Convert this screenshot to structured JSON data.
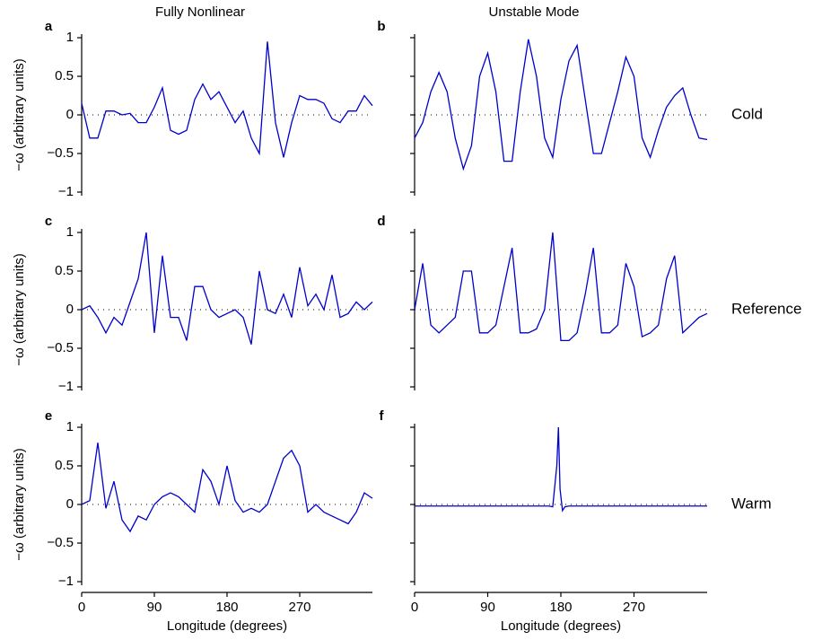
{
  "chart_data": [
    {
      "type": "line",
      "panel": "a",
      "title": "Fully Nonlinear",
      "ylabel": "−ω (arbitrary units)",
      "x": [
        0,
        10,
        20,
        30,
        40,
        50,
        60,
        70,
        80,
        90,
        100,
        110,
        120,
        130,
        140,
        150,
        160,
        170,
        180,
        190,
        200,
        210,
        220,
        230,
        240,
        250,
        260,
        270,
        280,
        290,
        300,
        310,
        320,
        330,
        340,
        350,
        360
      ],
      "values": [
        0.15,
        -0.3,
        -0.3,
        0.05,
        0.05,
        0.0,
        0.02,
        -0.1,
        -0.1,
        0.1,
        0.35,
        -0.2,
        -0.25,
        -0.2,
        0.2,
        0.4,
        0.2,
        0.3,
        0.1,
        -0.1,
        0.05,
        -0.3,
        -0.5,
        0.95,
        -0.1,
        -0.55,
        -0.1,
        0.25,
        0.2,
        0.2,
        0.15,
        -0.05,
        -0.1,
        0.05,
        0.05,
        0.25,
        0.12
      ],
      "color": "#0000cc",
      "xlim": [
        0,
        360
      ],
      "ylim": [
        -1,
        1
      ],
      "zero_line": true,
      "ytick_labels": true,
      "yticks": [
        {
          "value": -1,
          "label": "−1"
        },
        {
          "value": -0.5,
          "label": "−0.5"
        },
        0,
        0.5,
        1
      ]
    },
    {
      "type": "line",
      "panel": "b",
      "title": "Unstable Mode",
      "row_label": "Cold",
      "x": [
        0,
        10,
        20,
        30,
        40,
        50,
        60,
        70,
        80,
        90,
        100,
        110,
        120,
        130,
        140,
        150,
        160,
        170,
        180,
        190,
        200,
        210,
        220,
        230,
        240,
        250,
        260,
        270,
        280,
        290,
        300,
        310,
        320,
        330,
        340,
        350,
        360
      ],
      "values": [
        -0.3,
        -0.1,
        0.3,
        0.55,
        0.3,
        -0.3,
        -0.7,
        -0.4,
        0.5,
        0.8,
        0.3,
        -0.6,
        -0.6,
        0.3,
        0.98,
        0.5,
        -0.3,
        -0.55,
        0.2,
        0.7,
        0.9,
        0.2,
        -0.5,
        -0.5,
        -0.1,
        0.3,
        0.75,
        0.5,
        -0.3,
        -0.55,
        -0.2,
        0.1,
        0.25,
        0.35,
        0.0,
        -0.3,
        -0.32
      ],
      "color": "#0000cc",
      "xlim": [
        0,
        360
      ],
      "ylim": [
        -1,
        1
      ],
      "zero_line": true,
      "ytick_labels": false,
      "yticks": [
        -1,
        -0.5,
        0,
        0.5,
        1
      ]
    },
    {
      "type": "line",
      "panel": "c",
      "ylabel": "−ω (arbitrary units)",
      "x": [
        0,
        10,
        20,
        30,
        40,
        50,
        60,
        70,
        80,
        90,
        100,
        110,
        120,
        130,
        140,
        150,
        160,
        170,
        180,
        190,
        200,
        210,
        220,
        230,
        240,
        250,
        260,
        270,
        280,
        290,
        300,
        310,
        320,
        330,
        340,
        350,
        360
      ],
      "values": [
        0.0,
        0.05,
        -0.1,
        -0.3,
        -0.1,
        -0.2,
        0.1,
        0.4,
        1.0,
        -0.3,
        0.7,
        -0.1,
        -0.1,
        -0.4,
        0.3,
        0.3,
        0.0,
        -0.1,
        -0.05,
        0.0,
        -0.1,
        -0.45,
        0.5,
        0.0,
        -0.05,
        0.2,
        -0.1,
        0.55,
        0.05,
        0.2,
        0.0,
        0.45,
        -0.1,
        -0.05,
        0.1,
        0.0,
        0.1
      ],
      "color": "#0000cc",
      "xlim": [
        0,
        360
      ],
      "ylim": [
        -1,
        1
      ],
      "zero_line": true,
      "ytick_labels": true,
      "yticks": [
        {
          "value": -1,
          "label": "−1"
        },
        {
          "value": -0.5,
          "label": "−0.5"
        },
        0,
        0.5,
        1
      ]
    },
    {
      "type": "line",
      "panel": "d",
      "row_label": "Reference",
      "x": [
        0,
        10,
        20,
        30,
        40,
        50,
        60,
        70,
        80,
        90,
        100,
        110,
        120,
        130,
        140,
        150,
        160,
        170,
        180,
        190,
        200,
        210,
        220,
        230,
        240,
        250,
        260,
        270,
        280,
        290,
        300,
        310,
        320,
        330,
        340,
        350,
        360
      ],
      "values": [
        0.0,
        0.6,
        -0.2,
        -0.3,
        -0.2,
        -0.1,
        0.5,
        0.5,
        -0.3,
        -0.3,
        -0.2,
        0.3,
        0.8,
        -0.3,
        -0.3,
        -0.25,
        0.0,
        1.0,
        -0.4,
        -0.4,
        -0.3,
        0.2,
        0.8,
        -0.3,
        -0.3,
        -0.2,
        0.6,
        0.3,
        -0.35,
        -0.3,
        -0.2,
        0.4,
        0.7,
        -0.3,
        -0.2,
        -0.1,
        -0.05
      ],
      "color": "#0000cc",
      "xlim": [
        0,
        360
      ],
      "ylim": [
        -1,
        1
      ],
      "zero_line": true,
      "ytick_labels": false,
      "yticks": [
        -1,
        -0.5,
        0,
        0.5,
        1
      ]
    },
    {
      "type": "line",
      "panel": "e",
      "ylabel": "−ω (arbitrary units)",
      "xlabel": "Longitude (degrees)",
      "x": [
        0,
        10,
        20,
        30,
        40,
        50,
        60,
        70,
        80,
        90,
        100,
        110,
        120,
        130,
        140,
        150,
        160,
        170,
        180,
        190,
        200,
        210,
        220,
        230,
        240,
        250,
        260,
        270,
        280,
        290,
        300,
        310,
        320,
        330,
        340,
        350,
        360
      ],
      "values": [
        0.0,
        0.05,
        0.8,
        -0.05,
        0.3,
        -0.2,
        -0.35,
        -0.15,
        -0.2,
        0.0,
        0.1,
        0.15,
        0.1,
        0.0,
        -0.1,
        0.45,
        0.3,
        0.0,
        0.5,
        0.05,
        -0.1,
        -0.05,
        -0.1,
        0.0,
        0.3,
        0.6,
        0.7,
        0.5,
        -0.1,
        0.0,
        -0.1,
        -0.15,
        -0.2,
        -0.25,
        -0.1,
        0.15,
        0.08
      ],
      "color": "#0000cc",
      "xlim": [
        0,
        360
      ],
      "ylim": [
        -1,
        1
      ],
      "zero_line": true,
      "ytick_labels": true,
      "yticks": [
        {
          "value": -1,
          "label": "−1"
        },
        {
          "value": -0.5,
          "label": "−0.5"
        },
        0,
        0.5,
        1
      ],
      "xticks": [
        0,
        90,
        180,
        270
      ]
    },
    {
      "type": "line",
      "panel": "f",
      "row_label": "Warm",
      "xlabel": "Longitude (degrees)",
      "x": [
        0,
        165,
        170,
        175,
        177,
        179,
        182,
        185,
        190,
        360
      ],
      "values": [
        -0.02,
        -0.02,
        -0.03,
        0.5,
        1.0,
        0.2,
        -0.08,
        -0.03,
        -0.02,
        -0.02
      ],
      "color": "#0000cc",
      "xlim": [
        0,
        360
      ],
      "ylim": [
        -1,
        1
      ],
      "zero_line": true,
      "ytick_labels": false,
      "yticks": [
        -1,
        -0.5,
        0,
        0.5,
        1
      ],
      "xticks": [
        0,
        90,
        180,
        270
      ]
    }
  ]
}
